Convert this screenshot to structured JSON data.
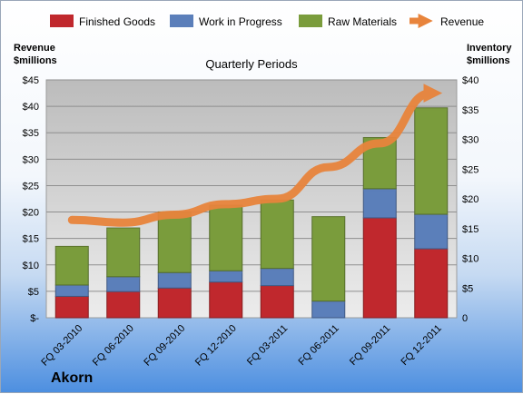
{
  "brand": "Akorn",
  "chart_data": {
    "type": "bar",
    "stacked": true,
    "title": "Quarterly Periods",
    "categories": [
      "FQ 03-2010",
      "FQ 06-2010",
      "FQ 09-2010",
      "FQ 12-2010",
      "FQ 03-2011",
      "FQ 06-2011",
      "FQ 09-2011",
      "FQ 12-2011"
    ],
    "left_axis": {
      "title_line1": "Revenue",
      "title_line2": "$millions",
      "ylim": [
        0,
        45
      ],
      "ticks": [
        "$-",
        "$5",
        "$10",
        "$15",
        "$20",
        "$25",
        "$30",
        "$35",
        "$40",
        "$45"
      ]
    },
    "right_axis": {
      "title_line1": "Inventory",
      "title_line2": "$millions",
      "ylim": [
        0,
        40
      ],
      "ticks": [
        "0",
        "$5",
        "$10",
        "$15",
        "$20",
        "$25",
        "$30",
        "$35",
        "$40"
      ]
    },
    "series": [
      {
        "name": "Finished Goods",
        "axis": "right",
        "color": "#c0282d",
        "values": [
          3.6,
          4.4,
          5.0,
          6.0,
          5.4,
          0,
          16.8,
          11.6
        ]
      },
      {
        "name": "Work in Progress",
        "axis": "right",
        "color": "#5b7fba",
        "values": [
          1.9,
          2.5,
          2.6,
          1.9,
          2.9,
          2.8,
          4.9,
          5.8
        ]
      },
      {
        "name": "Raw Materials",
        "axis": "right",
        "color": "#7a9c3c",
        "values": [
          6.5,
          8.2,
          10.2,
          11.0,
          11.5,
          14.2,
          8.6,
          17.9
        ]
      },
      {
        "name": "Revenue",
        "axis": "left",
        "type": "line",
        "color": "#e8843c",
        "values": [
          18.5,
          18.0,
          19.5,
          21.5,
          22.5,
          28.5,
          33.0,
          42.5
        ]
      }
    ],
    "grid": true,
    "legend_position": "top"
  }
}
